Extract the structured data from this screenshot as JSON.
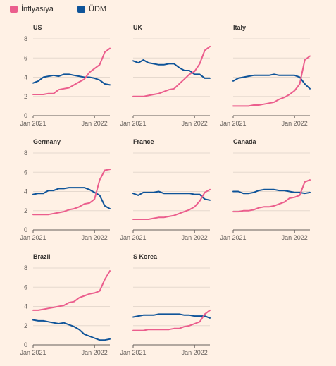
{
  "legend": [
    {
      "label": "İnflyasiya",
      "color": "#eb5e8d"
    },
    {
      "label": "ÜDM",
      "color": "#0f5499"
    }
  ],
  "chart_data": [
    {
      "type": "line",
      "title": "US",
      "y_ticks": [
        0,
        2,
        4,
        6,
        8
      ],
      "ylim": [
        0,
        8
      ],
      "x_ticks": [
        "Jan 2021",
        "Jan 2022"
      ],
      "series": [
        {
          "name": "İnflyasiya",
          "values": [
            2.2,
            2.2,
            2.2,
            2.3,
            2.3,
            2.7,
            2.8,
            2.9,
            3.2,
            3.5,
            3.8,
            4.5,
            4.9,
            5.3,
            6.6,
            7.0
          ]
        },
        {
          "name": "ÜDM",
          "values": [
            3.4,
            3.6,
            4.0,
            4.1,
            4.2,
            4.1,
            4.3,
            4.3,
            4.2,
            4.1,
            4.0,
            4.0,
            3.9,
            3.7,
            3.3,
            3.2
          ]
        }
      ]
    },
    {
      "type": "line",
      "title": "UK",
      "y_ticks": [
        0,
        2,
        4,
        6,
        8
      ],
      "ylim": [
        0,
        8
      ],
      "x_ticks": [
        "Jan 2021",
        "Jan 2022"
      ],
      "series": [
        {
          "name": "İnflyasiya",
          "values": [
            2.0,
            2.0,
            2.0,
            2.1,
            2.2,
            2.3,
            2.5,
            2.7,
            2.8,
            3.3,
            3.8,
            4.3,
            4.6,
            5.4,
            6.8,
            7.2
          ]
        },
        {
          "name": "ÜDM",
          "values": [
            5.7,
            5.5,
            5.8,
            5.5,
            5.4,
            5.3,
            5.3,
            5.4,
            5.4,
            5.0,
            4.7,
            4.7,
            4.3,
            4.3,
            3.9,
            3.9
          ]
        }
      ]
    },
    {
      "type": "line",
      "title": "Italy",
      "y_ticks": [
        0,
        2,
        4,
        6,
        8
      ],
      "ylim": [
        0,
        8
      ],
      "x_ticks": [
        "Jan 2021",
        "Jan 2022"
      ],
      "series": [
        {
          "name": "İnflyasiya",
          "values": [
            1.0,
            1.0,
            1.0,
            1.0,
            1.1,
            1.1,
            1.2,
            1.3,
            1.4,
            1.7,
            1.9,
            2.2,
            2.6,
            3.3,
            5.8,
            6.2
          ]
        },
        {
          "name": "ÜDM",
          "values": [
            3.6,
            3.9,
            4.0,
            4.1,
            4.2,
            4.2,
            4.2,
            4.2,
            4.3,
            4.2,
            4.2,
            4.2,
            4.2,
            4.0,
            3.3,
            2.8
          ]
        }
      ]
    },
    {
      "type": "line",
      "title": "Germany",
      "y_ticks": [
        0,
        2,
        4,
        6,
        8
      ],
      "ylim": [
        0,
        8
      ],
      "x_ticks": [
        "Jan 2021",
        "Jan 2022"
      ],
      "series": [
        {
          "name": "İnflyasiya",
          "values": [
            1.6,
            1.6,
            1.6,
            1.6,
            1.7,
            1.8,
            1.9,
            2.1,
            2.2,
            2.4,
            2.7,
            2.8,
            3.2,
            5.2,
            6.2,
            6.3
          ]
        },
        {
          "name": "ÜDM",
          "values": [
            3.7,
            3.8,
            3.8,
            4.1,
            4.1,
            4.3,
            4.3,
            4.4,
            4.4,
            4.4,
            4.4,
            4.2,
            3.9,
            3.6,
            2.5,
            2.2
          ]
        }
      ]
    },
    {
      "type": "line",
      "title": "France",
      "y_ticks": [
        0,
        2,
        4,
        6,
        8
      ],
      "ylim": [
        0,
        8
      ],
      "x_ticks": [
        "Jan 2021",
        "Jan 2022"
      ],
      "series": [
        {
          "name": "İnflyasiya",
          "values": [
            1.1,
            1.1,
            1.1,
            1.1,
            1.2,
            1.3,
            1.3,
            1.4,
            1.5,
            1.7,
            1.9,
            2.1,
            2.4,
            3.0,
            3.9,
            4.2
          ]
        },
        {
          "name": "ÜDM",
          "values": [
            3.8,
            3.6,
            3.9,
            3.9,
            3.9,
            4.0,
            3.8,
            3.8,
            3.8,
            3.8,
            3.8,
            3.8,
            3.7,
            3.7,
            3.2,
            3.1
          ]
        }
      ]
    },
    {
      "type": "line",
      "title": "Canada",
      "y_ticks": [
        0,
        2,
        4,
        6,
        8
      ],
      "ylim": [
        0,
        8
      ],
      "x_ticks": [
        "Jan 2021",
        "Jan 2022"
      ],
      "series": [
        {
          "name": "İnflyasiya",
          "values": [
            1.9,
            1.9,
            2.0,
            2.0,
            2.1,
            2.3,
            2.4,
            2.4,
            2.5,
            2.7,
            2.9,
            3.3,
            3.4,
            3.6,
            5.0,
            5.2
          ]
        },
        {
          "name": "ÜDM",
          "values": [
            4.0,
            4.0,
            3.8,
            3.8,
            3.9,
            4.1,
            4.2,
            4.2,
            4.2,
            4.1,
            4.1,
            4.0,
            3.9,
            3.9,
            3.8,
            3.9
          ]
        }
      ]
    },
    {
      "type": "line",
      "title": "Brazil",
      "y_ticks": [
        0,
        2,
        4,
        6,
        8
      ],
      "ylim": [
        0,
        8
      ],
      "x_ticks": [
        "Jan 2021",
        "Jan 2022"
      ],
      "series": [
        {
          "name": "İnflyasiya",
          "values": [
            3.6,
            3.6,
            3.7,
            3.8,
            3.9,
            4.0,
            4.1,
            4.4,
            4.5,
            4.9,
            5.1,
            5.3,
            5.4,
            5.6,
            6.8,
            7.7
          ]
        },
        {
          "name": "ÜDM",
          "values": [
            2.6,
            2.5,
            2.5,
            2.4,
            2.3,
            2.2,
            2.3,
            2.1,
            1.9,
            1.6,
            1.1,
            0.9,
            0.7,
            0.5,
            0.5,
            0.6
          ]
        }
      ]
    },
    {
      "type": "line",
      "title": "S Korea",
      "y_ticks": [
        0,
        2,
        4,
        6,
        8
      ],
      "ylim": [
        0,
        8
      ],
      "x_ticks": [
        "Jan 2021",
        "Jan 2022"
      ],
      "series": [
        {
          "name": "İnflyasiya",
          "values": [
            1.5,
            1.5,
            1.5,
            1.6,
            1.6,
            1.6,
            1.6,
            1.6,
            1.7,
            1.7,
            1.9,
            2.0,
            2.2,
            2.4,
            3.2,
            3.6
          ]
        },
        {
          "name": "ÜDM",
          "values": [
            2.9,
            3.0,
            3.1,
            3.1,
            3.1,
            3.2,
            3.2,
            3.2,
            3.2,
            3.2,
            3.1,
            3.1,
            3.0,
            3.0,
            3.0,
            2.8
          ]
        }
      ]
    }
  ]
}
